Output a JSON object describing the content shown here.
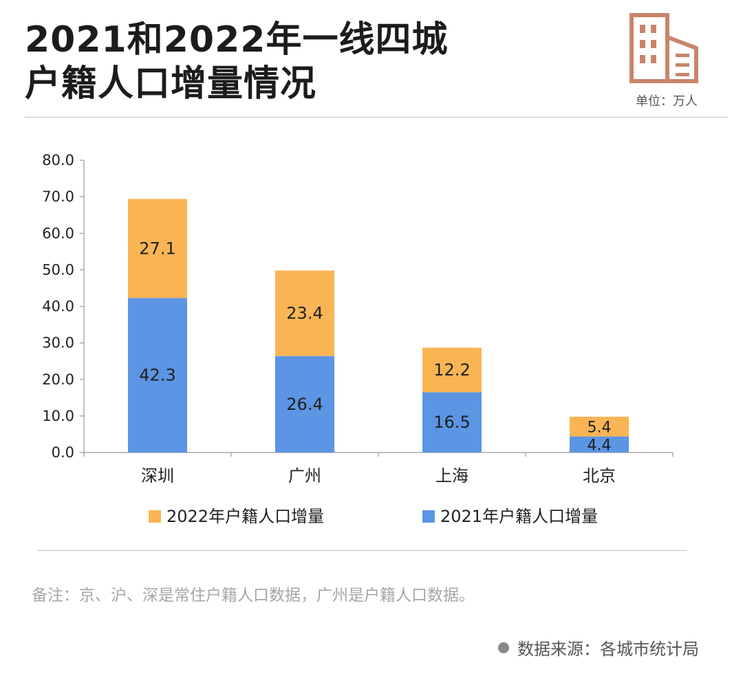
{
  "header": {
    "title_line1": "2021和2022年一线四城",
    "title_line2": "户籍人口增量情况",
    "unit": "单位：万人",
    "icon": "building-icon"
  },
  "chart_data": {
    "type": "bar",
    "stacked": true,
    "categories": [
      "深圳",
      "广州",
      "上海",
      "北京"
    ],
    "series": [
      {
        "name": "2021年户籍人口增量",
        "values": [
          42.3,
          26.4,
          16.5,
          4.4
        ],
        "color": "#5b95e3"
      },
      {
        "name": "2022年户籍人口增量",
        "values": [
          27.1,
          23.4,
          12.2,
          5.4
        ],
        "color": "#f9b454"
      }
    ],
    "ylim": [
      0,
      80
    ],
    "yticks": [
      "0.0",
      "10.0",
      "20.0",
      "30.0",
      "40.0",
      "50.0",
      "60.0",
      "70.0",
      "80.0"
    ],
    "legend": [
      {
        "label": "2022年户籍人口增量",
        "color": "#f9b454"
      },
      {
        "label": "2021年户籍人口增量",
        "color": "#5b95e3"
      }
    ],
    "legend_position": "bottom",
    "grid": false
  },
  "footer": {
    "note": "备注：京、沪、深是常住户籍人口数据，广州是户籍人口数据。",
    "source": "数据来源：各城市统计局"
  }
}
